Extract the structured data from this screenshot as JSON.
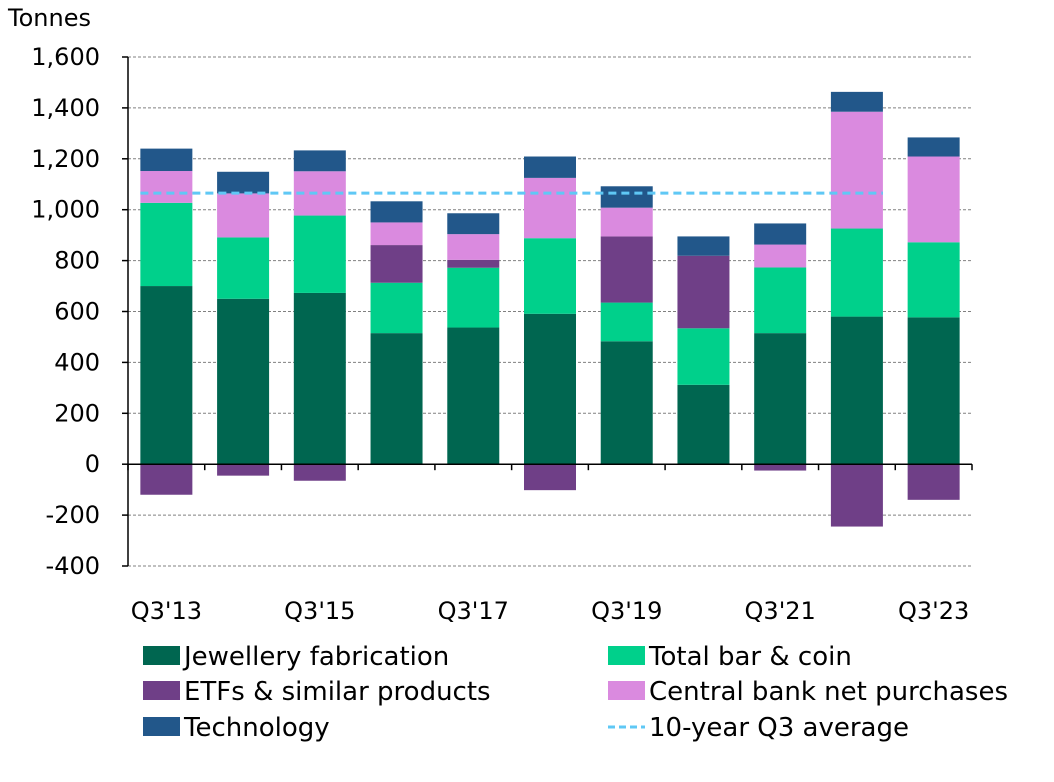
{
  "chart_data": {
    "type": "bar",
    "stacked": true,
    "unit_label": "Tonnes",
    "ylim": [
      -400,
      1600
    ],
    "yticks": [
      1600,
      1400,
      1200,
      1000,
      800,
      600,
      400,
      200,
      0,
      -200,
      -400
    ],
    "ytick_labels": [
      "1,600",
      "1,400",
      "1,200",
      "1,000",
      "800",
      "600",
      "400",
      "200",
      "0",
      "-200",
      "-400"
    ],
    "categories": [
      "Q3'13",
      "Q3'14",
      "Q3'15",
      "Q3'16",
      "Q3'17",
      "Q3'18",
      "Q3'19",
      "Q3'20",
      "Q3'21",
      "Q3'22",
      "Q3'23"
    ],
    "xtick_labels": [
      "Q3'13",
      "",
      "Q3'15",
      "",
      "Q3'17",
      "",
      "Q3'19",
      "",
      "Q3'21",
      "",
      "Q3'23"
    ],
    "grid": "horizontal-dashed",
    "legend_position": "bottom",
    "series": [
      {
        "name": "Jewellery fabrication",
        "color": "#006650",
        "values": [
          700,
          650,
          673,
          515,
          537,
          591,
          483,
          312,
          515,
          580,
          577
        ]
      },
      {
        "name": "Total bar & coin",
        "color": "#00D08B",
        "values": [
          327,
          241,
          304,
          198,
          235,
          297,
          152,
          222,
          258,
          346,
          295
        ]
      },
      {
        "name": "ETFs & similar products",
        "color": "#6F3F87",
        "values": [
          -120,
          -45,
          -65,
          148,
          31,
          -102,
          260,
          285,
          -25,
          -245,
          -140
        ]
      },
      {
        "name": "Central bank net purchases",
        "color": "#DA8ADF",
        "values": [
          125,
          173,
          174,
          89,
          101,
          237,
          113,
          0,
          90,
          459,
          337
        ]
      },
      {
        "name": "Technology",
        "color": "#22578A",
        "values": [
          88,
          85,
          82,
          83,
          82,
          84,
          84,
          76,
          83,
          78,
          75
        ]
      }
    ],
    "reference_line": {
      "name": "10-year Q3 average",
      "value": 1065,
      "color": "#5FC8F5",
      "style": "dashed",
      "from_category": "Q3'13",
      "to_category": "Q3'22"
    }
  }
}
